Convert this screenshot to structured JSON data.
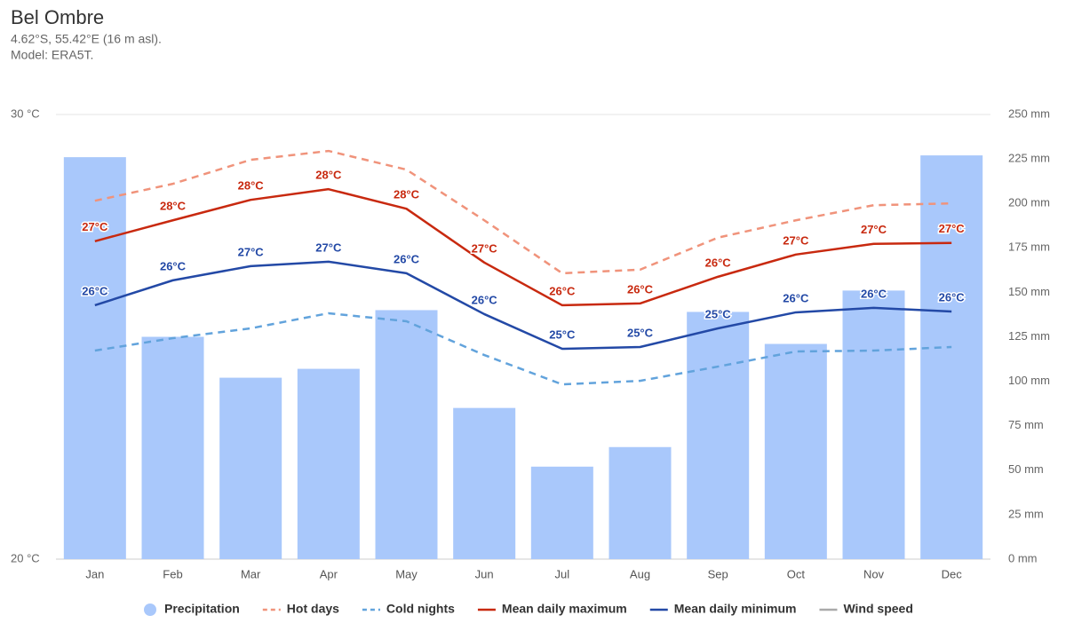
{
  "chart_data": {
    "type": "combo",
    "title": "Bel Ombre",
    "subtitle": [
      "4.62°S, 55.42°E (16 m asl).",
      "Model: ERA5T."
    ],
    "categories": [
      "Jan",
      "Feb",
      "Mar",
      "Apr",
      "May",
      "Jun",
      "Jul",
      "Aug",
      "Sep",
      "Oct",
      "Nov",
      "Dec"
    ],
    "ylim": [
      20,
      30
    ],
    "yticks": [
      {
        "value": 20,
        "label": "20 °C"
      },
      {
        "value": 30,
        "label": "30 °C"
      }
    ],
    "y2lim": [
      0,
      250
    ],
    "y2ticks": [
      {
        "value": 0,
        "label": "0 mm"
      },
      {
        "value": 25,
        "label": "25 mm"
      },
      {
        "value": 50,
        "label": "50 mm"
      },
      {
        "value": 75,
        "label": "75 mm"
      },
      {
        "value": 100,
        "label": "100 mm"
      },
      {
        "value": 125,
        "label": "125 mm"
      },
      {
        "value": 150,
        "label": "150 mm"
      },
      {
        "value": 175,
        "label": "175 mm"
      },
      {
        "value": 200,
        "label": "200 mm"
      },
      {
        "value": 225,
        "label": "225 mm"
      },
      {
        "value": 250,
        "label": "250 mm"
      }
    ],
    "grid": true,
    "legend": "bottom",
    "series": [
      {
        "name": "Precipitation",
        "type": "bar",
        "axis": "y2",
        "color": "#a9c8fb",
        "values": [
          226,
          125,
          102,
          107,
          140,
          85,
          52,
          63,
          139,
          121,
          151,
          227
        ]
      },
      {
        "name": "Hot days",
        "type": "line",
        "dash": true,
        "color": "#f0937b",
        "values": [
          28.06,
          28.44,
          28.98,
          29.18,
          28.76,
          27.62,
          26.43,
          26.51,
          27.23,
          27.62,
          27.96,
          28.0
        ]
      },
      {
        "name": "Cold nights",
        "type": "line",
        "dash": true,
        "color": "#62a3dc",
        "values": [
          24.69,
          24.97,
          25.19,
          25.53,
          25.35,
          24.59,
          23.93,
          24.01,
          24.33,
          24.67,
          24.69,
          24.77
        ]
      },
      {
        "name": "Mean daily maximum",
        "type": "line",
        "dash": false,
        "color": "#c8290f",
        "values": [
          27.15,
          27.62,
          28.08,
          28.32,
          27.88,
          26.67,
          25.71,
          25.75,
          26.35,
          26.85,
          27.09,
          27.11
        ],
        "value_labels": [
          "27°C",
          "28°C",
          "28°C",
          "28°C",
          "28°C",
          "27°C",
          "26°C",
          "26°C",
          "26°C",
          "27°C",
          "27°C",
          "27°C"
        ]
      },
      {
        "name": "Mean daily minimum",
        "type": "line",
        "dash": false,
        "color": "#2349a6",
        "values": [
          25.71,
          26.27,
          26.59,
          26.69,
          26.43,
          25.51,
          24.73,
          24.77,
          25.19,
          25.55,
          25.65,
          25.57
        ],
        "value_labels": [
          "26°C",
          "26°C",
          "27°C",
          "27°C",
          "26°C",
          "26°C",
          "25°C",
          "25°C",
          "25°C",
          "26°C",
          "26°C",
          "26°C"
        ]
      }
    ],
    "hidden_series": [
      {
        "name": "Wind speed",
        "color": "#aaaaaa"
      }
    ]
  }
}
